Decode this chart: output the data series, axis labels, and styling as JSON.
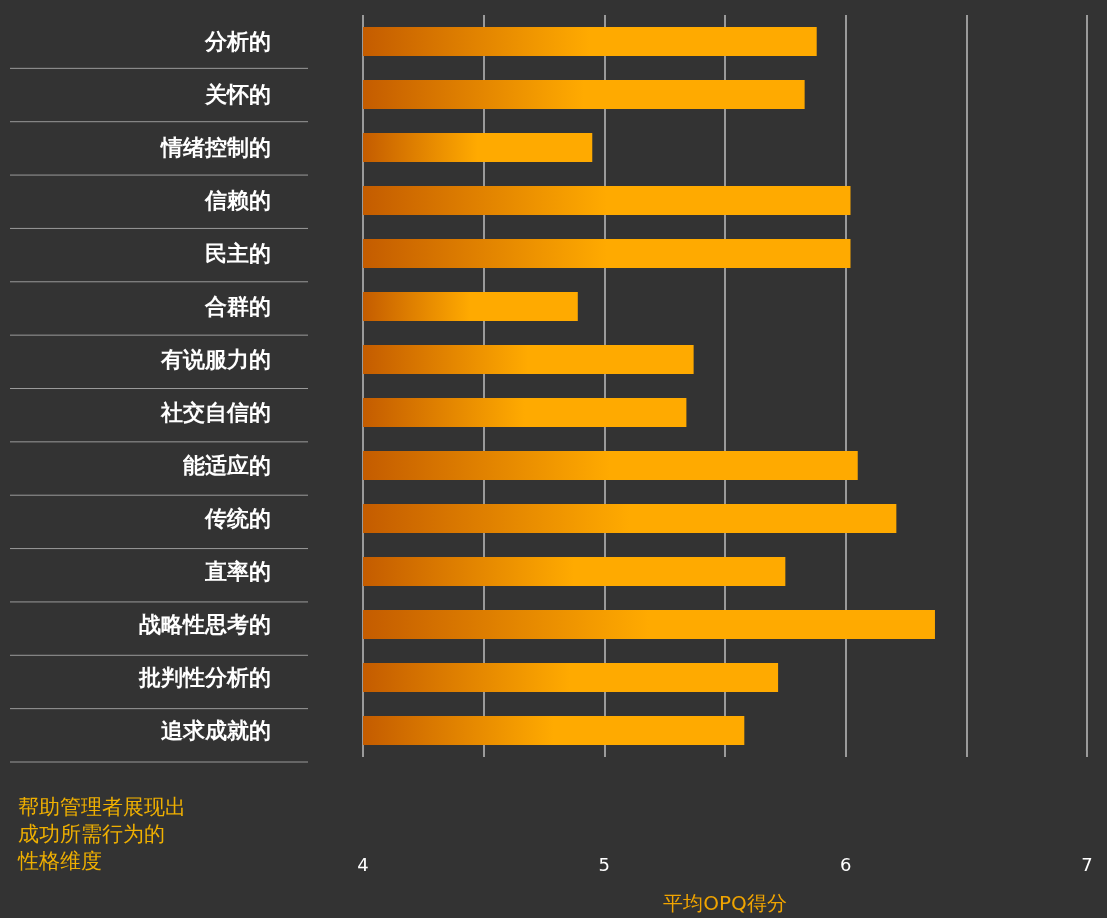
{
  "chart_data": {
    "type": "bar",
    "orientation": "horizontal",
    "categories": [
      "分析的",
      "关怀的",
      "情绪控制的",
      "信赖的",
      "民主的",
      "合群的",
      "有说服力的",
      "社交自信的",
      "能适应的",
      "传统的",
      "直率的",
      "战略性思考的",
      "批判性分析的",
      "追求成就的"
    ],
    "values": [
      5.88,
      5.83,
      4.95,
      6.02,
      6.02,
      4.89,
      5.37,
      5.34,
      6.05,
      6.21,
      5.75,
      6.37,
      5.72,
      5.58
    ],
    "color": "#ffaa00",
    "xlim": [
      4,
      7
    ],
    "xticks": [
      4,
      {
        "value": 4.5,
        "label": null
      },
      5,
      {
        "value": 5.5,
        "label": null
      },
      6,
      {
        "value": 6.5,
        "label": null
      },
      7
    ],
    "grid": "x",
    "xlabel": "平均OPQ得分",
    "annotations": [
      "帮助管理者展现出",
      "成功所需行为的",
      "性格维度"
    ]
  }
}
